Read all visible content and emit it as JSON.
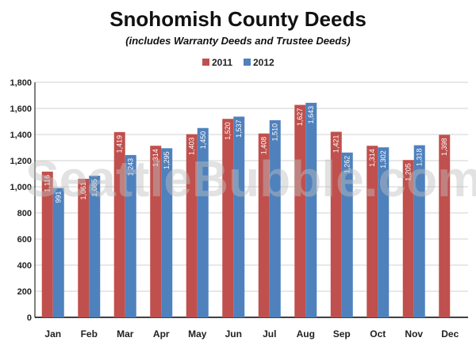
{
  "title": "Snohomish County Deeds",
  "subtitle": "(includes Warranty Deeds and Trustee Deeds)",
  "watermark": "SeattleBubble.com",
  "chart_data": {
    "type": "bar",
    "title": "Snohomish County Deeds",
    "subtitle": "(includes Warranty Deeds and Trustee Deeds)",
    "categories": [
      "Jan",
      "Feb",
      "Mar",
      "Apr",
      "May",
      "Jun",
      "Jul",
      "Aug",
      "Sep",
      "Oct",
      "Nov",
      "Dec"
    ],
    "series": [
      {
        "name": "2011",
        "color": "#c0504d",
        "values": [
          1116,
          1061,
          1419,
          1314,
          1403,
          1520,
          1408,
          1627,
          1421,
          1314,
          1205,
          1398
        ]
      },
      {
        "name": "2012",
        "color": "#4f81bd",
        "values": [
          991,
          1085,
          1243,
          1295,
          1450,
          1537,
          1510,
          1643,
          1262,
          1302,
          1318,
          null
        ]
      }
    ],
    "data_labels": [
      [
        "1,116",
        "1,061",
        "1,419",
        "1,314",
        "1,403",
        "1,520",
        "1,408",
        "1,627",
        "1,421",
        "1,314",
        "1,205",
        "1,398"
      ],
      [
        "991",
        "1,085",
        "1,243",
        "1,295",
        "1,450",
        "1,537",
        "1,510",
        "1,643",
        "1,262",
        "1,302",
        "1,318",
        ""
      ]
    ],
    "yticks": [
      0,
      200,
      400,
      600,
      800,
      1000,
      1200,
      1400,
      1600,
      1800
    ],
    "ytick_labels": [
      "0",
      "200",
      "400",
      "600",
      "800",
      "1,000",
      "1,200",
      "1,400",
      "1,600",
      "1,800"
    ],
    "xlabel": "",
    "ylabel": "",
    "ylim": [
      0,
      1800
    ],
    "grid": true,
    "legend_position": "top-center"
  }
}
